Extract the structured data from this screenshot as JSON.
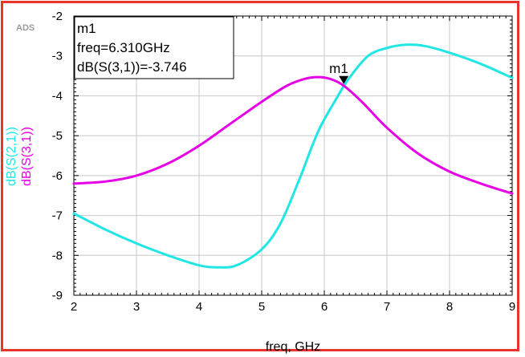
{
  "ads_label": "ADS",
  "chart_data": {
    "type": "line",
    "xlabel": "freq, GHz",
    "ylabel_series": [
      "dB(S(2,1))",
      "dB(S(3,1))"
    ],
    "xlim": [
      2,
      9
    ],
    "ylim": [
      -9,
      -2
    ],
    "x_ticks": [
      2,
      3,
      4,
      5,
      6,
      7,
      8,
      9
    ],
    "y_ticks": [
      -2,
      -3,
      -4,
      -5,
      -6,
      -7,
      -8,
      -9
    ],
    "grid": true,
    "series": [
      {
        "name": "dB(S(2,1))",
        "color": "#22e6e6",
        "x": [
          2.0,
          2.5,
          3.0,
          3.5,
          4.0,
          4.3,
          4.6,
          5.0,
          5.3,
          5.6,
          5.9,
          6.2,
          6.4,
          6.7,
          7.0,
          7.3,
          7.6,
          8.0,
          8.5,
          9.0
        ],
        "y": [
          -6.95,
          -7.35,
          -7.7,
          -8.0,
          -8.25,
          -8.3,
          -8.25,
          -7.85,
          -7.2,
          -6.1,
          -4.9,
          -4.05,
          -3.55,
          -3.0,
          -2.8,
          -2.72,
          -2.75,
          -2.92,
          -3.2,
          -3.55
        ]
      },
      {
        "name": "dB(S(3,1))",
        "color": "#e600e6",
        "x": [
          2.0,
          2.5,
          3.0,
          3.5,
          4.0,
          4.5,
          5.0,
          5.4,
          5.7,
          5.9,
          6.1,
          6.31,
          6.6,
          7.0,
          7.5,
          8.0,
          8.5,
          9.0
        ],
        "y": [
          -6.2,
          -6.15,
          -6.0,
          -5.7,
          -5.25,
          -4.7,
          -4.15,
          -3.75,
          -3.57,
          -3.53,
          -3.58,
          -3.746,
          -4.15,
          -4.8,
          -5.45,
          -5.9,
          -6.2,
          -6.45
        ]
      }
    ],
    "marker": {
      "name": "m1",
      "x": 6.31,
      "y": -3.746,
      "lines": [
        "m1",
        "freq=6.310GHz",
        "dB(S(3,1))=-3.746"
      ]
    }
  }
}
